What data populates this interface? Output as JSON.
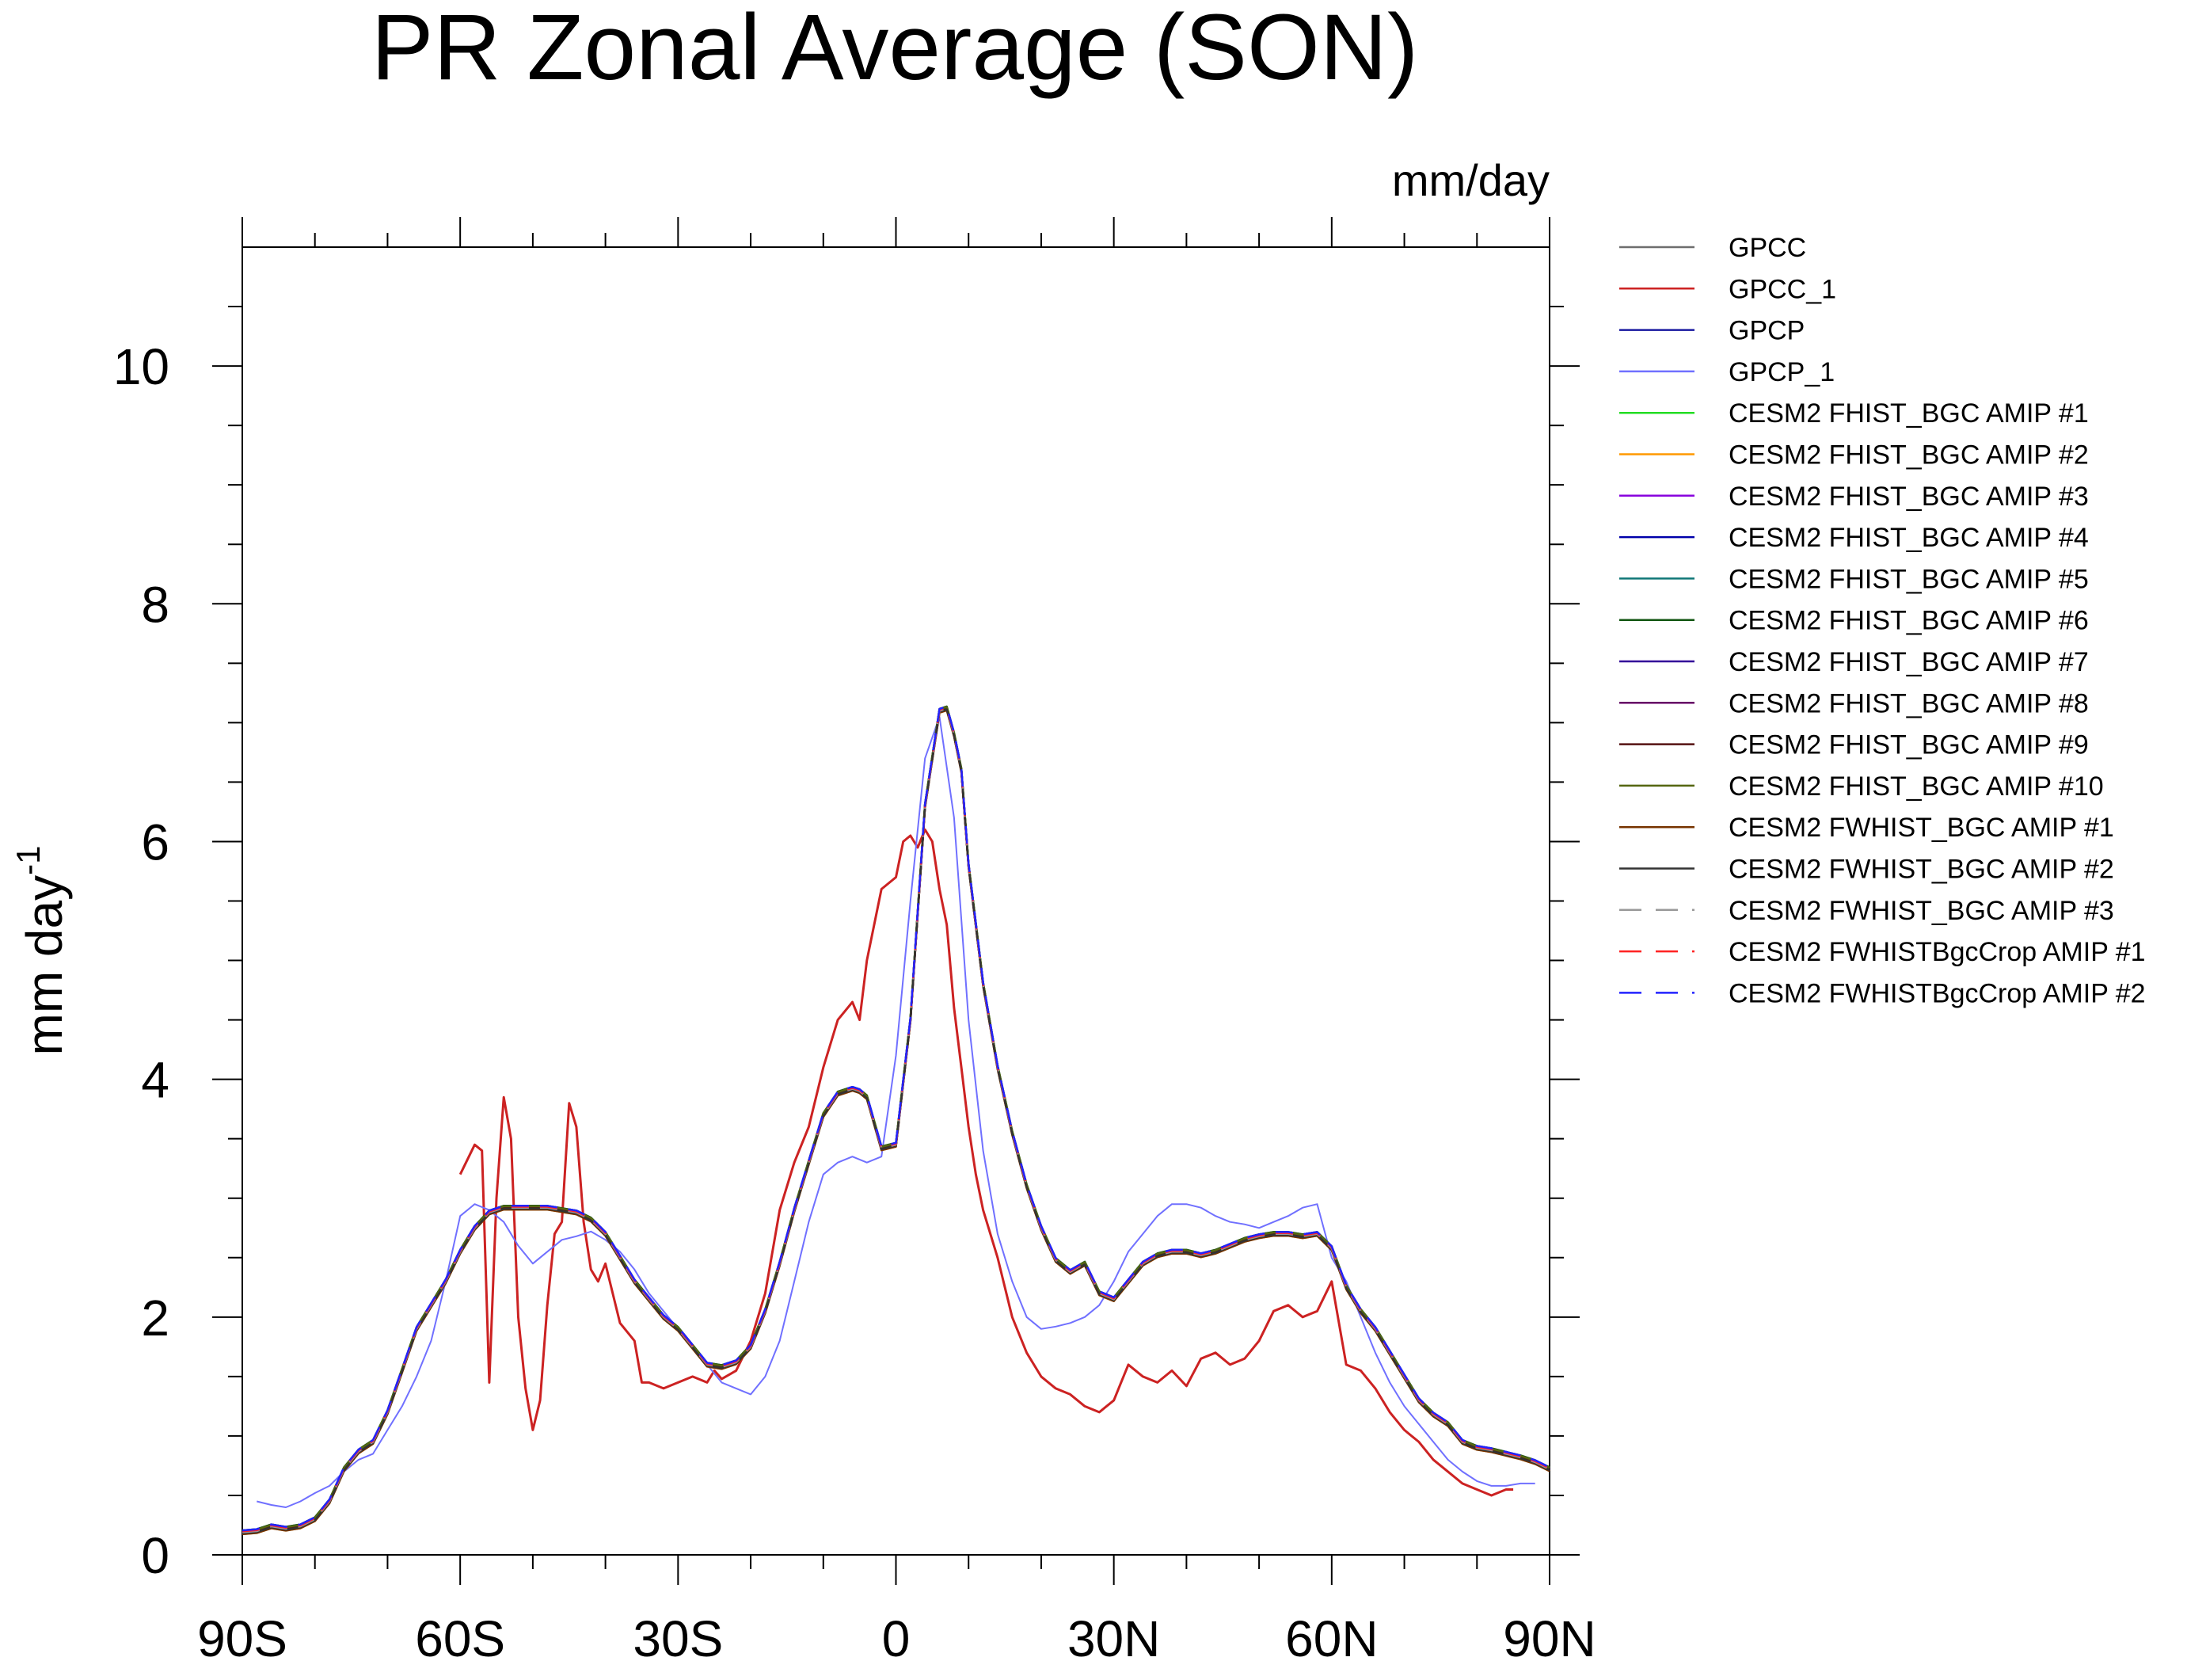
{
  "chart_data": {
    "type": "line",
    "title": "PR Zonal Average (SON)",
    "units_label": "mm/day",
    "ylabel": "mm day",
    "ylabel_superscript": "-1",
    "xlabel": "",
    "xlim": [
      -90,
      90
    ],
    "ylim": [
      0,
      11
    ],
    "x_ticks": [
      -90,
      -60,
      -30,
      0,
      30,
      60,
      90
    ],
    "x_tick_labels": [
      "90S",
      "60S",
      "30S",
      "0",
      "30N",
      "60N",
      "90N"
    ],
    "y_ticks": [
      0,
      2,
      4,
      6,
      8,
      10
    ],
    "y_tick_labels": [
      "0",
      "2",
      "4",
      "6",
      "8",
      "10"
    ],
    "grid": false,
    "legend_position": "right",
    "series": [
      {
        "name": "GPCC",
        "color": "#6e6e6e",
        "dash": "solid"
      },
      {
        "name": "GPCC_1",
        "color": "#cc2222",
        "dash": "solid"
      },
      {
        "name": "GPCP",
        "color": "#1a1aa0",
        "dash": "solid"
      },
      {
        "name": "GPCP_1",
        "color": "#7070ff",
        "dash": "solid"
      },
      {
        "name": "CESM2 FHIST_BGC AMIP #1",
        "color": "#22dd22",
        "dash": "solid"
      },
      {
        "name": "CESM2 FHIST_BGC AMIP #2",
        "color": "#ff9900",
        "dash": "solid"
      },
      {
        "name": "CESM2 FHIST_BGC AMIP #3",
        "color": "#8800dd",
        "dash": "solid"
      },
      {
        "name": "CESM2 FHIST_BGC AMIP #4",
        "color": "#0000aa",
        "dash": "solid"
      },
      {
        "name": "CESM2 FHIST_BGC AMIP #5",
        "color": "#117777",
        "dash": "solid"
      },
      {
        "name": "CESM2 FHIST_BGC AMIP #6",
        "color": "#115511",
        "dash": "solid"
      },
      {
        "name": "CESM2 FHIST_BGC AMIP #7",
        "color": "#330099",
        "dash": "solid"
      },
      {
        "name": "CESM2 FHIST_BGC AMIP #8",
        "color": "#660066",
        "dash": "solid"
      },
      {
        "name": "CESM2 FHIST_BGC AMIP #9",
        "color": "#551111",
        "dash": "solid"
      },
      {
        "name": "CESM2 FHIST_BGC AMIP #10",
        "color": "#556611",
        "dash": "solid"
      },
      {
        "name": "CESM2 FWHIST_BGC AMIP #1",
        "color": "#773300",
        "dash": "solid"
      },
      {
        "name": "CESM2 FWHIST_BGC AMIP #2",
        "color": "#333333",
        "dash": "solid"
      },
      {
        "name": "CESM2 FWHIST_BGC AMIP #3",
        "color": "#999999",
        "dash": "dashed"
      },
      {
        "name": "CESM2 FWHIST BgcCrop AMIP #1",
        "label": "CESM2 FWHISTBgcCrop AMIP #1",
        "color": "#ff2222",
        "dash": "dashed"
      },
      {
        "name": "CESM2 FWHISTBgcCrop AMIP #2",
        "color": "#2222ff",
        "dash": "dashed"
      }
    ],
    "curves": {
      "model_mean": {
        "x": [
          -90,
          -88,
          -86,
          -84,
          -82,
          -80,
          -78,
          -76,
          -74,
          -72,
          -70,
          -68,
          -66,
          -64,
          -62,
          -60,
          -58,
          -56,
          -54,
          -52,
          -50,
          -48,
          -46,
          -44,
          -42,
          -40,
          -38,
          -36,
          -34,
          -32,
          -30,
          -28,
          -26,
          -24,
          -22,
          -20,
          -18,
          -16,
          -14,
          -12,
          -10,
          -8,
          -6,
          -5,
          -4,
          -2,
          0,
          2,
          4,
          6,
          7,
          8,
          9,
          10,
          12,
          14,
          16,
          18,
          20,
          22,
          24,
          26,
          28,
          30,
          32,
          34,
          36,
          38,
          40,
          42,
          44,
          46,
          48,
          50,
          52,
          54,
          56,
          58,
          60,
          62,
          64,
          66,
          68,
          70,
          72,
          74,
          76,
          78,
          80,
          82,
          84,
          86,
          88,
          90
        ],
        "y": [
          0.19,
          0.2,
          0.24,
          0.22,
          0.24,
          0.3,
          0.45,
          0.72,
          0.87,
          0.95,
          1.2,
          1.55,
          1.9,
          2.1,
          2.3,
          2.55,
          2.75,
          2.88,
          2.92,
          2.92,
          2.92,
          2.92,
          2.9,
          2.88,
          2.82,
          2.7,
          2.5,
          2.3,
          2.15,
          2.0,
          1.9,
          1.75,
          1.6,
          1.58,
          1.62,
          1.75,
          2.05,
          2.45,
          2.9,
          3.3,
          3.7,
          3.88,
          3.92,
          3.9,
          3.85,
          3.42,
          3.45,
          4.5,
          6.3,
          7.1,
          7.12,
          6.9,
          6.6,
          5.8,
          4.8,
          4.1,
          3.55,
          3.1,
          2.75,
          2.48,
          2.38,
          2.45,
          2.2,
          2.15,
          2.3,
          2.45,
          2.52,
          2.55,
          2.55,
          2.52,
          2.55,
          2.6,
          2.65,
          2.68,
          2.7,
          2.7,
          2.68,
          2.7,
          2.58,
          2.25,
          2.05,
          1.9,
          1.7,
          1.5,
          1.3,
          1.18,
          1.1,
          0.95,
          0.9,
          0.88,
          0.85,
          0.82,
          0.78,
          0.72
        ]
      },
      "gpcc_1": {
        "x": [
          -60,
          -58,
          -57,
          -56,
          -55,
          -54,
          -53,
          -52,
          -51,
          -50,
          -49,
          -48,
          -47,
          -46,
          -45,
          -44,
          -43,
          -42,
          -41,
          -40,
          -38,
          -36,
          -35,
          -34,
          -32,
          -30,
          -28,
          -26,
          -25,
          -24,
          -22,
          -20,
          -18,
          -16,
          -14,
          -12,
          -10,
          -8,
          -6,
          -5,
          -4,
          -2,
          0,
          1,
          2,
          3,
          4,
          5,
          6,
          7,
          8,
          9,
          10,
          11,
          12,
          14,
          16,
          18,
          20,
          22,
          24,
          26,
          28,
          30,
          31,
          32,
          34,
          36,
          38,
          40,
          42,
          44,
          46,
          48,
          50,
          52,
          54,
          56,
          58,
          60,
          62,
          64,
          66,
          68,
          70,
          72,
          74,
          76,
          78,
          80,
          82,
          84,
          85
        ],
        "y": [
          3.2,
          3.45,
          3.4,
          1.45,
          3.0,
          3.85,
          3.5,
          2.0,
          1.4,
          1.05,
          1.3,
          2.1,
          2.7,
          2.8,
          3.8,
          3.6,
          2.8,
          2.4,
          2.3,
          2.45,
          1.95,
          1.8,
          1.45,
          1.45,
          1.4,
          1.45,
          1.5,
          1.45,
          1.55,
          1.48,
          1.55,
          1.8,
          2.2,
          2.9,
          3.3,
          3.6,
          4.1,
          4.5,
          4.65,
          4.5,
          5.0,
          5.6,
          5.7,
          6.0,
          6.05,
          5.95,
          6.1,
          6.0,
          5.6,
          5.3,
          4.6,
          4.1,
          3.6,
          3.2,
          2.9,
          2.5,
          2.0,
          1.7,
          1.5,
          1.4,
          1.35,
          1.25,
          1.2,
          1.3,
          1.45,
          1.6,
          1.5,
          1.45,
          1.55,
          1.42,
          1.65,
          1.7,
          1.6,
          1.65,
          1.8,
          2.05,
          2.1,
          2.0,
          2.05,
          2.3,
          1.6,
          1.55,
          1.4,
          1.2,
          1.05,
          0.95,
          0.8,
          0.7,
          0.6,
          0.55,
          0.5,
          0.55,
          0.55
        ]
      },
      "gpcp_1": {
        "x": [
          -88,
          -86,
          -84,
          -82,
          -80,
          -78,
          -76,
          -74,
          -72,
          -70,
          -68,
          -66,
          -64,
          -62,
          -60,
          -58,
          -56,
          -54,
          -52,
          -50,
          -48,
          -46,
          -44,
          -42,
          -40,
          -38,
          -36,
          -34,
          -32,
          -30,
          -28,
          -26,
          -24,
          -22,
          -20,
          -18,
          -16,
          -14,
          -12,
          -10,
          -8,
          -6,
          -4,
          -2,
          0,
          2,
          4,
          6,
          8,
          10,
          12,
          14,
          16,
          18,
          20,
          22,
          24,
          26,
          28,
          30,
          32,
          34,
          36,
          38,
          40,
          42,
          44,
          46,
          48,
          50,
          52,
          54,
          56,
          58,
          60,
          62,
          64,
          66,
          68,
          70,
          72,
          74,
          76,
          78,
          80,
          82,
          84,
          86,
          88
        ],
        "y": [
          0.45,
          0.42,
          0.4,
          0.45,
          0.52,
          0.58,
          0.7,
          0.8,
          0.85,
          1.05,
          1.25,
          1.5,
          1.8,
          2.3,
          2.85,
          2.95,
          2.9,
          2.8,
          2.6,
          2.45,
          2.55,
          2.65,
          2.68,
          2.72,
          2.65,
          2.55,
          2.4,
          2.2,
          2.05,
          1.9,
          1.75,
          1.6,
          1.45,
          1.4,
          1.35,
          1.5,
          1.8,
          2.3,
          2.8,
          3.2,
          3.3,
          3.35,
          3.3,
          3.35,
          4.2,
          5.5,
          6.7,
          7.05,
          6.2,
          4.5,
          3.4,
          2.7,
          2.3,
          2.0,
          1.9,
          1.92,
          1.95,
          2.0,
          2.1,
          2.3,
          2.55,
          2.7,
          2.85,
          2.95,
          2.95,
          2.92,
          2.85,
          2.8,
          2.78,
          2.75,
          2.8,
          2.85,
          2.92,
          2.95,
          2.5,
          2.3,
          2.0,
          1.7,
          1.45,
          1.25,
          1.1,
          0.95,
          0.8,
          0.7,
          0.62,
          0.58,
          0.58,
          0.6,
          0.6
        ]
      }
    }
  }
}
